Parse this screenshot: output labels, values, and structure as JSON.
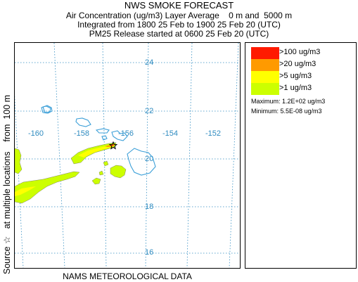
{
  "header": {
    "title": "NWS SMOKE FORECAST",
    "line2": "Air Concentration (ug/m3) Layer Average    0 m and  5000 m",
    "line3": "Integrated from 1800 25 Feb to 1900 25 Feb 20 (UTC)",
    "line4": "PM25 Release started at 0600 25 Feb 20 (UTC)"
  },
  "map": {
    "latitudes": [
      "24",
      "22",
      "20",
      "18",
      "16"
    ],
    "longitudes": [
      "-160",
      "-158",
      "-156",
      "-154",
      "-152"
    ],
    "source_marker_icon": "star-icon",
    "coastline_color": "#3b9fd8",
    "grid_color": "#2e8bc0"
  },
  "left_label": "Source ☆   at multiple locations    from  100 m",
  "bottom_label": "NAMS METEOROLOGICAL DATA",
  "legend": {
    "items": [
      {
        "label": ">100 ug/m3",
        "color": "#ff1a00"
      },
      {
        "label": ">20 ug/m3",
        "color": "#ff9a00"
      },
      {
        "label": ">5 ug/m3",
        "color": "#ffff00"
      },
      {
        "label": ">1 ug/m3",
        "color": "#ccff00"
      }
    ],
    "maximum": "Maximum: 1.2E+02 ug/m3",
    "minimum": "Minimum: 5.5E-08 ug/m3"
  }
}
